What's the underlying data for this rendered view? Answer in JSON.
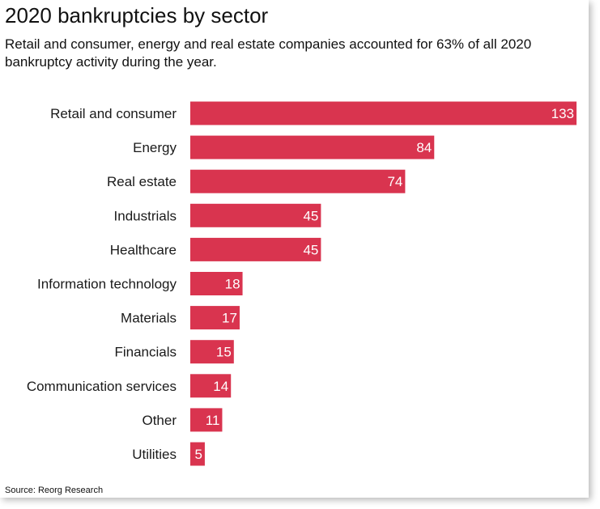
{
  "chart_data": {
    "type": "bar",
    "orientation": "horizontal",
    "title": "2020 bankruptcies by sector",
    "subtitle": "Retail and consumer, energy and real estate companies accounted for 63% of all 2020 bankruptcy activity during the year.",
    "categories": [
      "Retail and consumer",
      "Energy",
      "Real estate",
      "Industrials",
      "Healthcare",
      "Information technology",
      "Materials",
      "Financials",
      "Communication services",
      "Other",
      "Utilities"
    ],
    "values": [
      133,
      84,
      74,
      45,
      45,
      18,
      17,
      15,
      14,
      11,
      5
    ],
    "xlim": [
      0,
      133
    ],
    "xlabel": "",
    "ylabel": "",
    "grid": false,
    "data_labels": true,
    "bar_color": "#d9344f",
    "source": "Source: Reorg Research"
  }
}
